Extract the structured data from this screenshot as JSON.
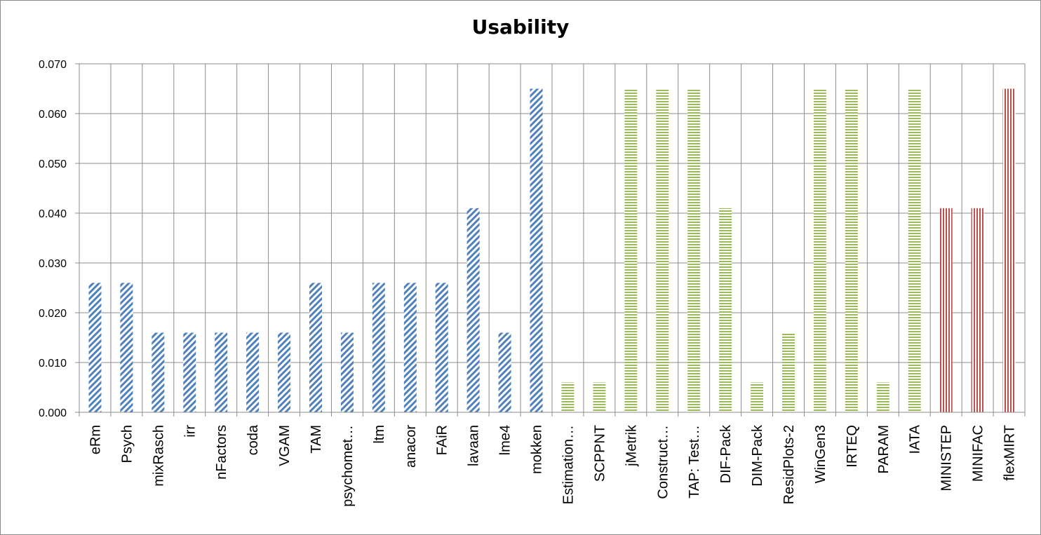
{
  "chart_data": {
    "type": "bar",
    "title": "Usability",
    "xlabel": "",
    "ylabel": "",
    "ylim": [
      0,
      0.07
    ],
    "yticks": [
      "0.000",
      "0.010",
      "0.020",
      "0.030",
      "0.040",
      "0.050",
      "0.060",
      "0.070"
    ],
    "grid": true,
    "legend": "none",
    "categories": [
      "eRm",
      "Psych",
      "mixRasch",
      "irr",
      "nFactors",
      "coda",
      "VGAM",
      "TAM",
      "psychomet…",
      "ltm",
      "anacor",
      "FAiR",
      "lavaan",
      "lme4",
      "mokken",
      "Estimation…",
      "SCPPNT",
      "jMetrik",
      "Construct…",
      "TAP: Test…",
      "DIF-Pack",
      "DIM-Pack",
      "ResidPlots-2",
      "WinGen3",
      "IRTEQ",
      "PARAM",
      "IATA",
      "MINISTEP",
      "MINIFAC",
      "flexMIRT"
    ],
    "values": [
      0.026,
      0.026,
      0.016,
      0.016,
      0.016,
      0.016,
      0.016,
      0.026,
      0.016,
      0.026,
      0.026,
      0.026,
      0.041,
      0.016,
      0.065,
      0.006,
      0.006,
      0.065,
      0.065,
      0.065,
      0.041,
      0.006,
      0.016,
      0.065,
      0.065,
      0.006,
      0.065,
      0.041,
      0.041,
      0.065
    ],
    "groups": [
      "blue",
      "blue",
      "blue",
      "blue",
      "blue",
      "blue",
      "blue",
      "blue",
      "blue",
      "blue",
      "blue",
      "blue",
      "blue",
      "blue",
      "blue",
      "green",
      "green",
      "green",
      "green",
      "green",
      "green",
      "green",
      "green",
      "green",
      "green",
      "green",
      "green",
      "red",
      "red",
      "red"
    ],
    "colors": {
      "blue": "#4f81bd",
      "green": "#9bbb59",
      "red": "#c0504d",
      "grid": "#8c8c8c"
    },
    "patterns": {
      "blue": "diagonal-stripes",
      "green": "horizontal-stripes",
      "red": "vertical-stripes"
    }
  }
}
